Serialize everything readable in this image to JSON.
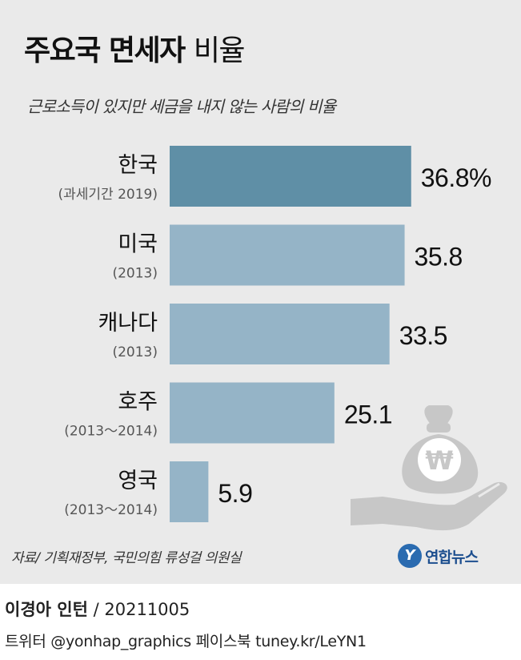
{
  "title": {
    "bold": "주요국 면세자",
    "light": "비율"
  },
  "subtitle": "근로소득이 있지만 세금을 내지 않는 사람의 비율",
  "source": "자료/ 기획재정부, 국민의힘 류성걸 의원실",
  "logo": {
    "mark": "Y",
    "text": "연합뉴스"
  },
  "author": {
    "name": "이경아 인턴",
    "date": "/ 20211005"
  },
  "social": "트위터 @yonhap_graphics  페이스북 tuney.kr/LeYN1",
  "colors": {
    "highlight": "#5f8fa6",
    "bar": "#95b4c7",
    "icon": "#c7c7c7",
    "background": "#eaeaea"
  },
  "icon_name": "hand-holding-won-money-bag-icon",
  "icon_symbol": "₩",
  "chart_data": {
    "type": "bar",
    "orientation": "horizontal",
    "categories": [
      "한국",
      "미국",
      "캐나다",
      "호주",
      "영국"
    ],
    "periods": [
      "(과세기간 2019)",
      "(2013)",
      "(2013)",
      "(2013～2014)",
      "(2013～2014)"
    ],
    "values": [
      36.8,
      35.8,
      33.5,
      25.1,
      5.9
    ],
    "value_labels": [
      "36.8%",
      "35.8",
      "33.5",
      "25.1",
      "5.9"
    ],
    "highlight_index": 0,
    "xlim": [
      0,
      40
    ]
  }
}
